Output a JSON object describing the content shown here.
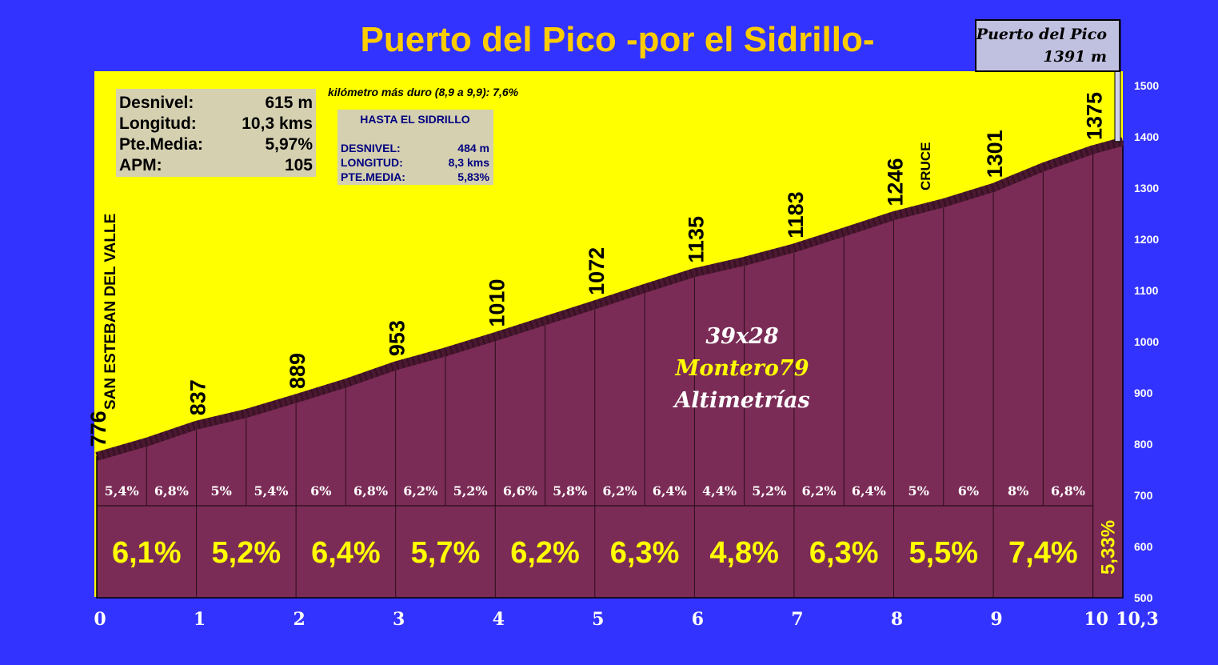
{
  "chart_data": {
    "type": "area",
    "title": "Puerto del Pico -por el Sidrillo-",
    "summit": {
      "name": "Puerto del Pico",
      "altitude": "1391 m"
    },
    "start_label": "SAN ESTEBAN DEL VALLE",
    "cruce_label": "CRUCE",
    "hardest_km": "kilómetro más duro (8,9 a 9,9):  7,6%",
    "stats": [
      {
        "label": "Desnivel:",
        "value": "615 m"
      },
      {
        "label": "Longitud:",
        "value": "10,3 kms"
      },
      {
        "label": "Pte.Media:",
        "value": "5,97%"
      },
      {
        "label": "APM:",
        "value": "105"
      }
    ],
    "sub_stats": {
      "title": "HASTA EL SIDRILLO",
      "rows": [
        {
          "label": "DESNIVEL:",
          "value": "484 m"
        },
        {
          "label": "LONGITUD:",
          "value": "8,3 kms"
        },
        {
          "label": "PTE.MEDIA:",
          "value": "5,83%"
        }
      ]
    },
    "credits": {
      "gear": "39x28",
      "author": "Montero79",
      "site": "Altimetrías"
    },
    "ylim": [
      500,
      1500
    ],
    "yticks": [
      "500",
      "600",
      "700",
      "800",
      "900",
      "1000",
      "1100",
      "1200",
      "1300",
      "1400",
      "1500"
    ],
    "xlim": [
      0,
      10.3
    ],
    "xticks": [
      {
        "x": 0,
        "label": "0"
      },
      {
        "x": 1,
        "label": "1"
      },
      {
        "x": 2,
        "label": "2"
      },
      {
        "x": 3,
        "label": "3"
      },
      {
        "x": 4,
        "label": "4"
      },
      {
        "x": 5,
        "label": "5"
      },
      {
        "x": 6,
        "label": "6"
      },
      {
        "x": 7,
        "label": "7"
      },
      {
        "x": 8,
        "label": "8"
      },
      {
        "x": 9,
        "label": "9"
      },
      {
        "x": 10,
        "label": "10"
      },
      {
        "x": 10.3,
        "label": "10,3"
      }
    ],
    "profile": [
      [
        0,
        776
      ],
      [
        0.5,
        804
      ],
      [
        1,
        837
      ],
      [
        1.5,
        860
      ],
      [
        2,
        889
      ],
      [
        2.5,
        919
      ],
      [
        3,
        953
      ],
      [
        3.5,
        980
      ],
      [
        4,
        1010
      ],
      [
        4.5,
        1041
      ],
      [
        5,
        1072
      ],
      [
        5.5,
        1104
      ],
      [
        6,
        1135
      ],
      [
        6.5,
        1157
      ],
      [
        7,
        1183
      ],
      [
        7.5,
        1214
      ],
      [
        8,
        1246
      ],
      [
        8.5,
        1271
      ],
      [
        9,
        1301
      ],
      [
        9.5,
        1341
      ],
      [
        10,
        1375
      ],
      [
        10.3,
        1391
      ]
    ],
    "elevation_labels": [
      {
        "x": 0,
        "value": "776"
      },
      {
        "x": 1,
        "value": "837"
      },
      {
        "x": 2,
        "value": "889"
      },
      {
        "x": 3,
        "value": "953"
      },
      {
        "x": 4,
        "value": "1010"
      },
      {
        "x": 5,
        "value": "1072"
      },
      {
        "x": 6,
        "value": "1135"
      },
      {
        "x": 7,
        "value": "1183"
      },
      {
        "x": 8,
        "value": "1246"
      },
      {
        "x": 9,
        "value": "1301"
      },
      {
        "x": 10,
        "value": "1375"
      }
    ],
    "half_km_gradients": [
      "5,4%",
      "6,8%",
      "5%",
      "5,4%",
      "6%",
      "6,8%",
      "6,2%",
      "5,2%",
      "6,6%",
      "5,8%",
      "6,2%",
      "6,4%",
      "4,4%",
      "5,2%",
      "6,2%",
      "6,4%",
      "5%",
      "6%",
      "8%",
      "6,8%"
    ],
    "km_gradients": [
      "6,1%",
      "5,2%",
      "6,4%",
      "5,7%",
      "6,2%",
      "6,3%",
      "4,8%",
      "6,3%",
      "5,5%",
      "7,4%"
    ],
    "last_segment_gradient": "5,33%",
    "colors": {
      "background": "#3333ff",
      "sky": "#ffff00",
      "profile": "#7b2c56",
      "profile_edge": "#4a1830",
      "title": "#ffcc00"
    }
  }
}
